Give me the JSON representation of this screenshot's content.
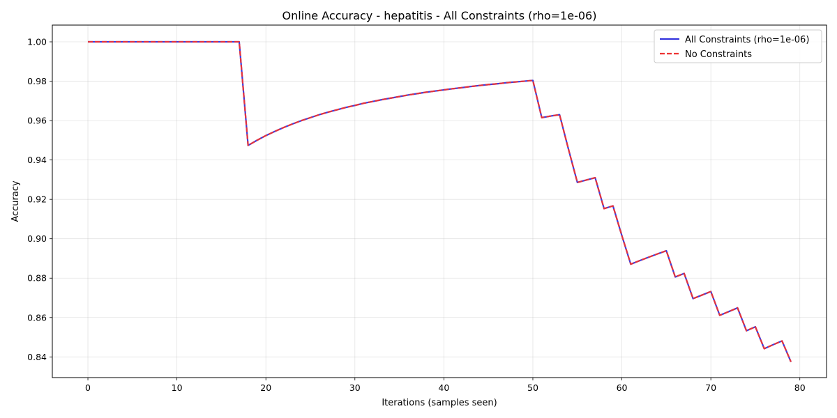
{
  "chart_data": {
    "type": "line",
    "title": "Online Accuracy - hepatitis - All Constraints (rho=1e-06)",
    "xlabel": "Iterations (samples seen)",
    "ylabel": "Accuracy",
    "xlim": [
      -4,
      83
    ],
    "ylim": [
      0.8295,
      1.0085
    ],
    "xticks": [
      0,
      10,
      20,
      30,
      40,
      50,
      60,
      70,
      80
    ],
    "yticks": [
      0.84,
      0.86,
      0.88,
      0.9,
      0.92,
      0.94,
      0.96,
      0.98,
      1.0
    ],
    "xtick_labels": [
      "0",
      "10",
      "20",
      "30",
      "40",
      "50",
      "60",
      "70",
      "80"
    ],
    "ytick_labels": [
      "0.84",
      "0.86",
      "0.88",
      "0.90",
      "0.92",
      "0.94",
      "0.96",
      "0.98",
      "1.00"
    ],
    "grid": true,
    "legend_position": "top-right",
    "x": [
      0,
      1,
      2,
      3,
      4,
      5,
      6,
      7,
      8,
      9,
      10,
      11,
      12,
      13,
      14,
      15,
      16,
      17,
      18,
      19,
      20,
      21,
      22,
      23,
      24,
      25,
      26,
      27,
      28,
      29,
      30,
      31,
      32,
      33,
      34,
      35,
      36,
      37,
      38,
      39,
      40,
      41,
      42,
      43,
      44,
      45,
      46,
      47,
      48,
      49,
      50,
      51,
      52,
      53,
      54,
      55,
      56,
      57,
      58,
      59,
      60,
      61,
      62,
      63,
      64,
      65,
      66,
      67,
      68,
      69,
      70,
      71,
      72,
      73,
      74,
      75,
      76,
      77,
      78,
      79
    ],
    "series": [
      {
        "name": "All Constraints (rho=1e-06)",
        "color": "#3333dd",
        "dash": "solid",
        "values": [
          1,
          1,
          1,
          1,
          1,
          1,
          1,
          1,
          1,
          1,
          1,
          1,
          1,
          1,
          1,
          1,
          1,
          1,
          0.9474,
          0.95,
          0.9524,
          0.9545,
          0.9565,
          0.9583,
          0.96,
          0.9615,
          0.963,
          0.9643,
          0.9655,
          0.9667,
          0.9677,
          0.9688,
          0.9697,
          0.9706,
          0.9714,
          0.9722,
          0.973,
          0.9737,
          0.9744,
          0.975,
          0.9756,
          0.9762,
          0.9767,
          0.9773,
          0.9778,
          0.9783,
          0.9787,
          0.9792,
          0.9796,
          0.98,
          0.9804,
          0.9615,
          0.9623,
          0.963,
          0.9455,
          0.9286,
          0.9298,
          0.931,
          0.9153,
          0.9167,
          0.9016,
          0.8871,
          0.8889,
          0.8906,
          0.8923,
          0.8939,
          0.8806,
          0.8824,
          0.8696,
          0.8714,
          0.8732,
          0.8611,
          0.863,
          0.8649,
          0.8533,
          0.8553,
          0.8442,
          0.8462,
          0.8481,
          0.8375
        ]
      },
      {
        "name": "No Constraints",
        "color": "#ee3333",
        "dash": "dashed",
        "values": [
          1,
          1,
          1,
          1,
          1,
          1,
          1,
          1,
          1,
          1,
          1,
          1,
          1,
          1,
          1,
          1,
          1,
          1,
          0.9474,
          0.95,
          0.9524,
          0.9545,
          0.9565,
          0.9583,
          0.96,
          0.9615,
          0.963,
          0.9643,
          0.9655,
          0.9667,
          0.9677,
          0.9688,
          0.9697,
          0.9706,
          0.9714,
          0.9722,
          0.973,
          0.9737,
          0.9744,
          0.975,
          0.9756,
          0.9762,
          0.9767,
          0.9773,
          0.9778,
          0.9783,
          0.9787,
          0.9792,
          0.9796,
          0.98,
          0.9804,
          0.9615,
          0.9623,
          0.963,
          0.9455,
          0.9286,
          0.9298,
          0.931,
          0.9153,
          0.9167,
          0.9016,
          0.8871,
          0.8889,
          0.8906,
          0.8923,
          0.8939,
          0.8806,
          0.8824,
          0.8696,
          0.8714,
          0.8732,
          0.8611,
          0.863,
          0.8649,
          0.8533,
          0.8553,
          0.8442,
          0.8462,
          0.8481,
          0.8375
        ]
      }
    ]
  }
}
